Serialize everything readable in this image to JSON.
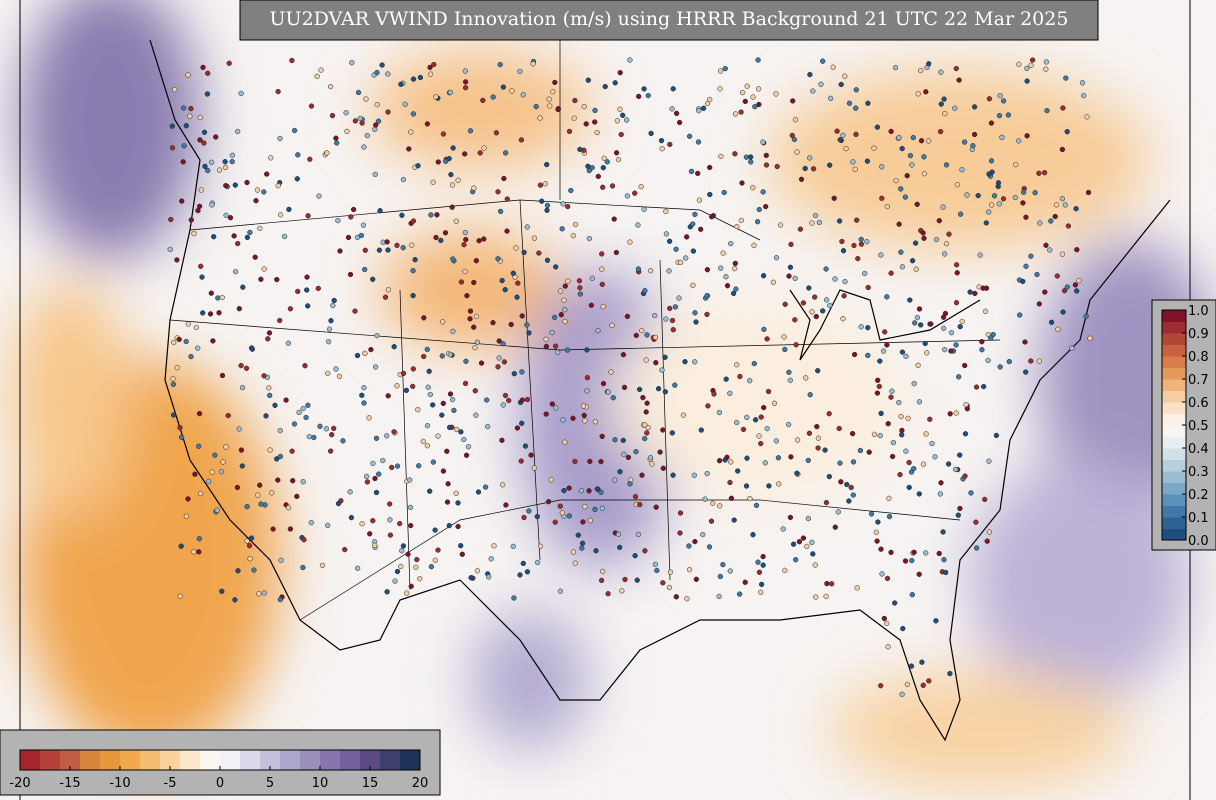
{
  "title": "UU2DVAR VWIND Innovation (m/s) using HRRR Background 21 UTC 22 Mar 2025",
  "colorbar_bottom": {
    "lim": [
      -20,
      20
    ],
    "ticks": [
      -20,
      -15,
      -10,
      -5,
      0,
      5,
      10,
      15,
      20
    ],
    "colors": [
      "#a6262c",
      "#b5423a",
      "#c25d45",
      "#d9843c",
      "#e8963a",
      "#f0a94d",
      "#f4bd72",
      "#f8d39d",
      "#fbe7cb",
      "#fdf7f0",
      "#f3f1f8",
      "#dcd8ea",
      "#c5bfdc",
      "#afa6cc",
      "#9a8fbd",
      "#8676ad",
      "#725f9b",
      "#5c4a85",
      "#3f3f6e",
      "#1c3458"
    ]
  },
  "colorbar_right": {
    "lim": [
      0,
      1
    ],
    "ticks": [
      {
        "value": 0,
        "label": "0.0"
      },
      0.1,
      0.2,
      0.3,
      0.4,
      0.5,
      0.6,
      0.7,
      0.8,
      0.9,
      {
        "value": 1,
        "label": "1.0"
      }
    ],
    "colors": [
      "#1d4e7d",
      "#2d6393",
      "#3f79a8",
      "#5a92bb",
      "#7aa8c8",
      "#9bbdd4",
      "#b8cfdd",
      "#d3e0e8",
      "#e8eef2",
      "#f7f6f3",
      "#faf0e4",
      "#f8e1c6",
      "#f4cda3",
      "#eeb47c",
      "#e59a5b",
      "#d97e4a",
      "#c8613f",
      "#b44637",
      "#9c2c30",
      "#7e1327"
    ]
  }
}
